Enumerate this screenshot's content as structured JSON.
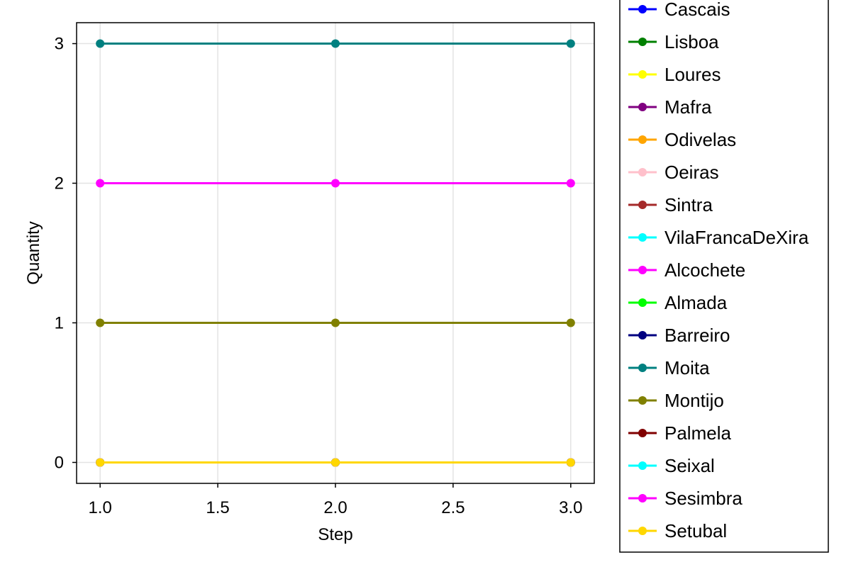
{
  "chart_data": {
    "type": "line",
    "xlabel": "Step",
    "ylabel": "Quantity",
    "xlim": [
      0.9,
      3.1
    ],
    "ylim": [
      -0.15,
      3.15
    ],
    "xticks": [
      "1.0",
      "1.5",
      "2.0",
      "2.5",
      "3.0"
    ],
    "yticks": [
      "0",
      "1",
      "2",
      "3"
    ],
    "grid": true,
    "legend_position": "right",
    "x": [
      1,
      2,
      3
    ],
    "series": [
      {
        "name": "Cascais",
        "color": "#0000ff",
        "values": [
          0,
          0,
          0
        ]
      },
      {
        "name": "Lisboa",
        "color": "#008000",
        "values": [
          0,
          0,
          0
        ]
      },
      {
        "name": "Loures",
        "color": "#ffff00",
        "values": [
          0,
          0,
          0
        ]
      },
      {
        "name": "Mafra",
        "color": "#800080",
        "values": [
          0,
          0,
          0
        ]
      },
      {
        "name": "Odivelas",
        "color": "#ffa500",
        "values": [
          0,
          0,
          0
        ]
      },
      {
        "name": "Oeiras",
        "color": "#ffc0cb",
        "values": [
          0,
          0,
          0
        ]
      },
      {
        "name": "Sintra",
        "color": "#a52a2a",
        "values": [
          0,
          0,
          0
        ]
      },
      {
        "name": "VilaFrancaDeXira",
        "color": "#00ffff",
        "values": [
          0,
          0,
          0
        ]
      },
      {
        "name": "Alcochete",
        "color": "#ff00ff",
        "values": [
          2,
          2,
          2
        ]
      },
      {
        "name": "Almada",
        "color": "#00ff00",
        "values": [
          0,
          0,
          0
        ]
      },
      {
        "name": "Barreiro",
        "color": "#000080",
        "values": [
          0,
          0,
          0
        ]
      },
      {
        "name": "Moita",
        "color": "#008080",
        "values": [
          3,
          3,
          3
        ]
      },
      {
        "name": "Montijo",
        "color": "#808000",
        "values": [
          1,
          1,
          1
        ]
      },
      {
        "name": "Palmela",
        "color": "#800000",
        "values": [
          0,
          0,
          0
        ]
      },
      {
        "name": "Seixal",
        "color": "#00ffff",
        "values": [
          0,
          0,
          0
        ]
      },
      {
        "name": "Sesimbra",
        "color": "#ff00ff",
        "values": [
          0,
          0,
          0
        ]
      },
      {
        "name": "Setubal",
        "color": "#ffd700",
        "values": [
          0,
          0,
          0
        ]
      }
    ]
  }
}
